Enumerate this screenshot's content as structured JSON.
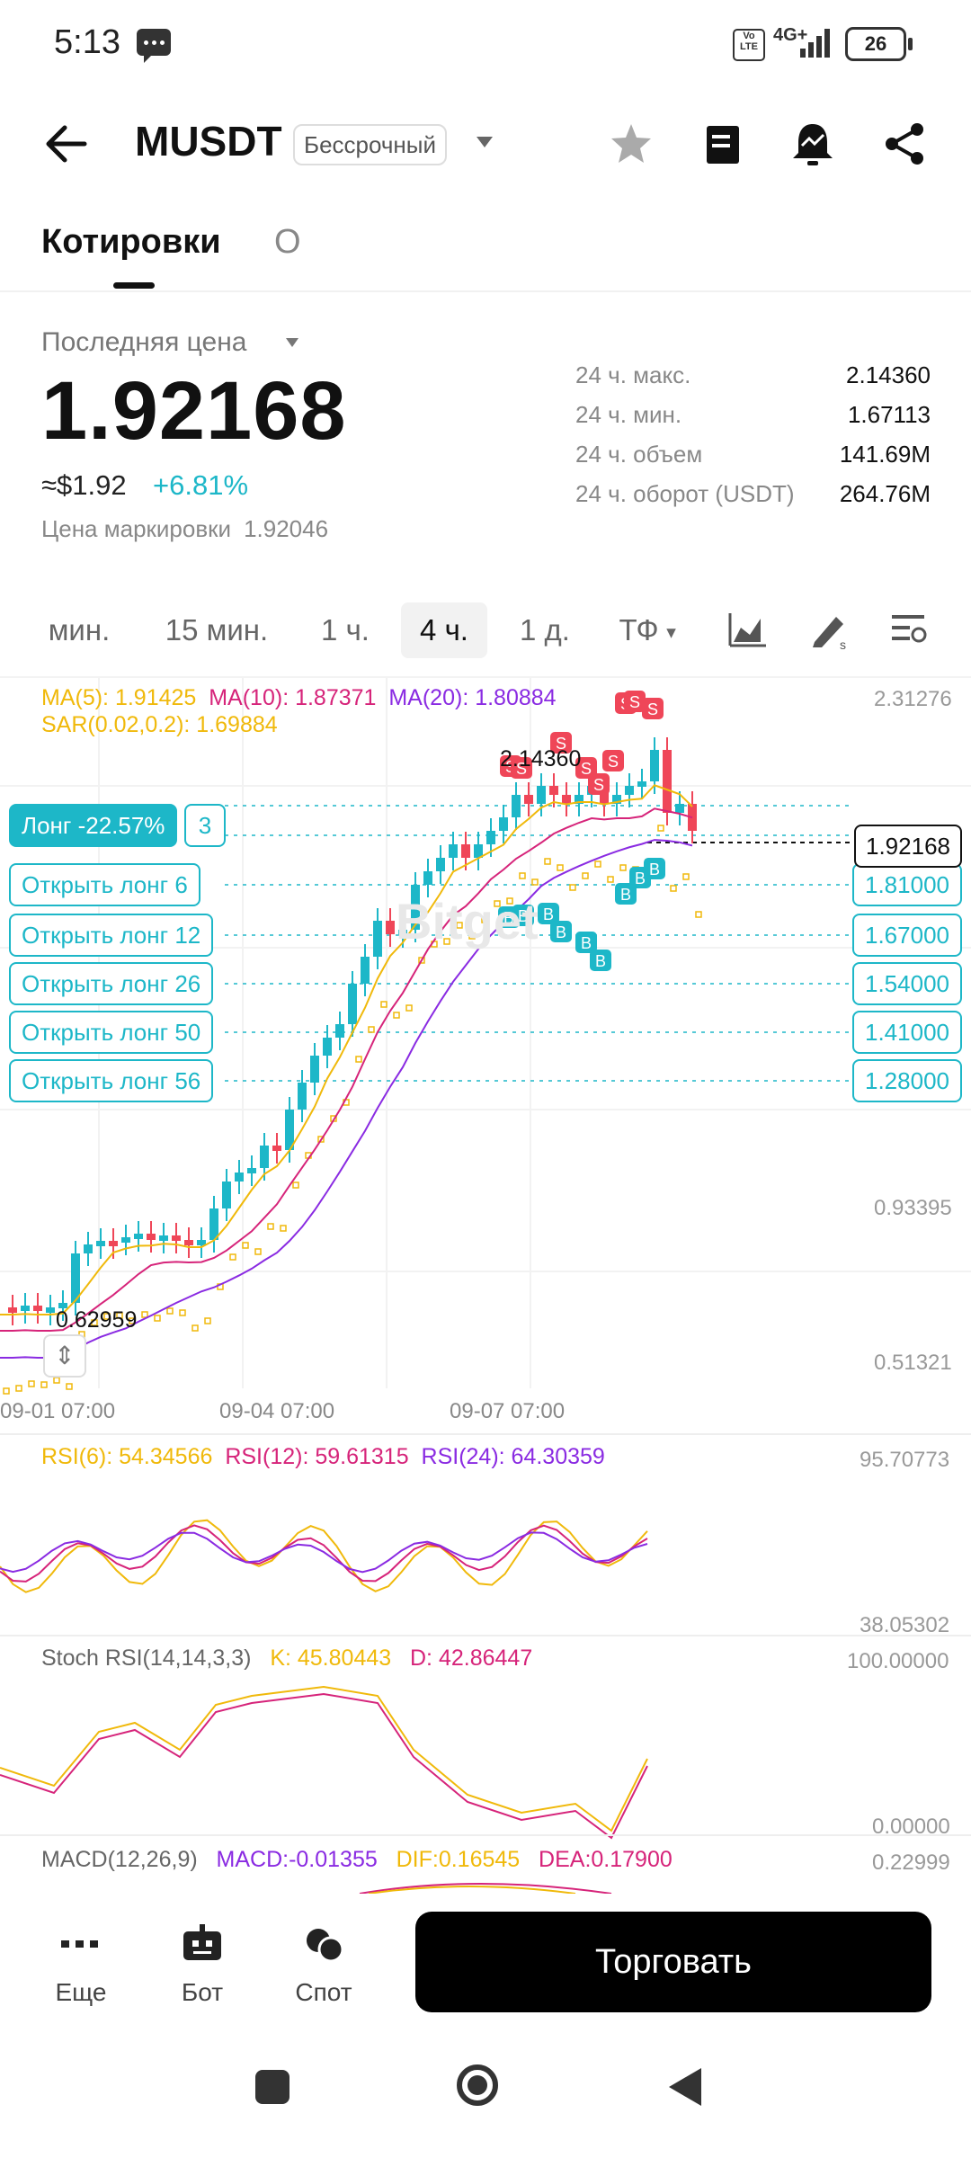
{
  "status_bar": {
    "time": "5:13",
    "network": "4G+",
    "lte": "Vo LTE",
    "battery": "26"
  },
  "header": {
    "symbol": "MUSDT",
    "contract_type": "Бессрочный"
  },
  "tabs": [
    {
      "label": "Котировки"
    },
    {
      "label": "О"
    }
  ],
  "price": {
    "last_price_label": "Последняя цена",
    "last_price": "1.92168",
    "usd_value": "≈$1.92",
    "change": "+6.81%",
    "mark_label": "Цена маркировки",
    "mark_value": "1.92046"
  },
  "stats": [
    {
      "label": "24 ч. макс.",
      "value": "2.14360"
    },
    {
      "label": "24 ч. мин.",
      "value": "1.67113"
    },
    {
      "label": "24 ч. объем",
      "value": "141.69M"
    },
    {
      "label": "24 ч. оборот (USDT)",
      "value": "264.76M"
    }
  ],
  "timeframes": [
    {
      "label": "мин."
    },
    {
      "label": "15 мин."
    },
    {
      "label": "1 ч."
    },
    {
      "label": "4 ч.",
      "active": true
    },
    {
      "label": "1 д."
    },
    {
      "label": "ТФ"
    }
  ],
  "ma": {
    "ma5": "MA(5): 1.91425",
    "ma10": "MA(10): 1.87371",
    "ma20": "MA(20): 1.80884",
    "sar": "SAR(0.02,0.2): 1.69884"
  },
  "position": {
    "label": "Лонг -22.57%",
    "qty": "3"
  },
  "orders": [
    {
      "label": "Открыть лонг 6",
      "price": "1.81000"
    },
    {
      "label": "Открыть лонг 12",
      "price": "1.67000"
    },
    {
      "label": "Открыть лонг 26",
      "price": "1.54000"
    },
    {
      "label": "Открыть лонг 50",
      "price": "1.41000"
    },
    {
      "label": "Открыть лонг 56",
      "price": "1.28000"
    }
  ],
  "current_price_tag": "1.92168",
  "y_axis": [
    "2.31276",
    "0.93395",
    "0.51321"
  ],
  "high_marker": "2.14360",
  "low_marker": "0.62959",
  "watermark": "Bitget",
  "x_axis": [
    "09-01 07:00",
    "09-04 07:00",
    "09-07 07:00"
  ],
  "rsi": {
    "rsi6": "RSI(6): 54.34566",
    "rsi12": "RSI(12): 59.61315",
    "rsi24": "RSI(24): 64.30359",
    "top": "95.70773",
    "bottom": "38.05302"
  },
  "stoch": {
    "label": "Stoch RSI(14,14,3,3)",
    "k": "K: 45.80443",
    "d": "D: 42.86447",
    "top": "100.00000",
    "bottom": "0.00000"
  },
  "macd": {
    "label": "MACD(12,26,9)",
    "macd": "MACD:-0.01355",
    "dif": "DIF:0.16545",
    "dea": "DEA:0.17900",
    "top": "0.22999"
  },
  "bottom_bar": {
    "more": "Еще",
    "bot": "Бот",
    "spot": "Спот",
    "trade": "Торговать"
  },
  "colors": {
    "up": "#1db7c8",
    "down": "#ef4658",
    "ma5": "#f0b90b",
    "ma10": "#d6247a",
    "ma20": "#8a2be2"
  }
}
